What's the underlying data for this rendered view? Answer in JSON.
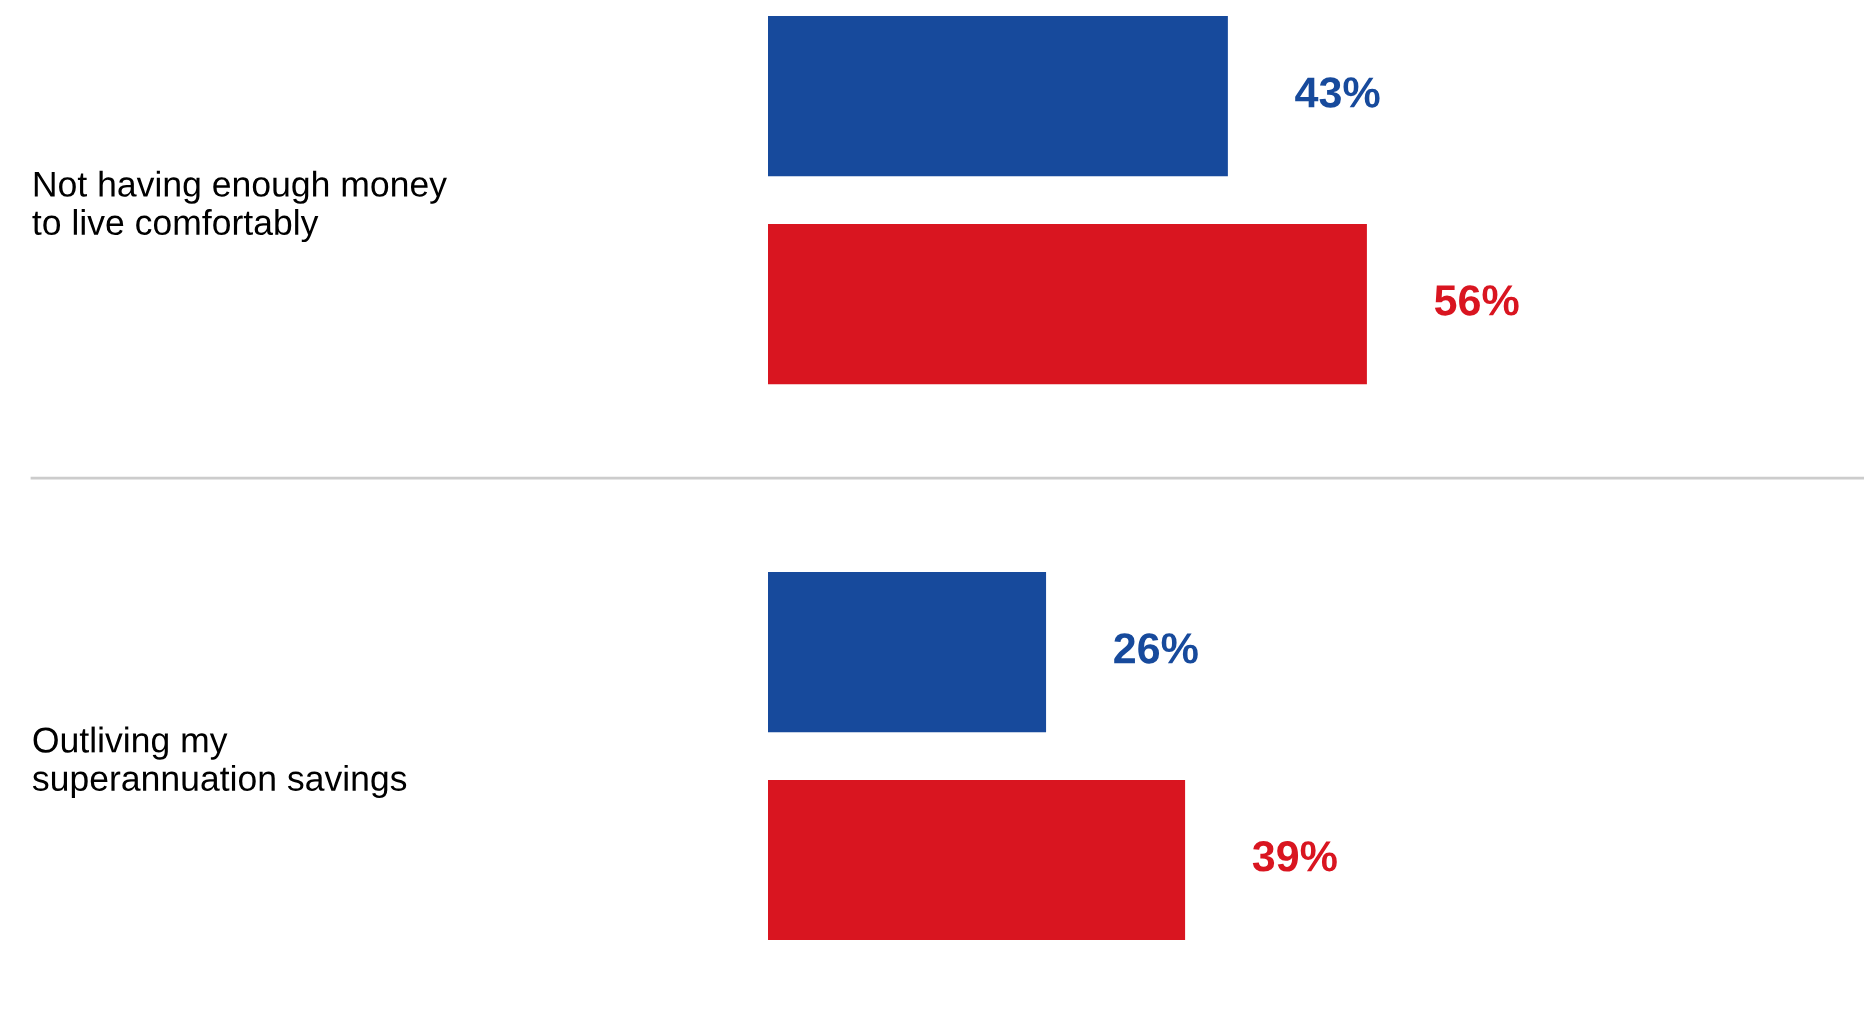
{
  "chart_data": {
    "type": "bar",
    "orientation": "horizontal",
    "categories": [
      "Not having enough money\nto live comfortably",
      "Outliving my\nsuperannuation savings"
    ],
    "series": [
      {
        "color": "#174a9c",
        "values": [
          43,
          26
        ],
        "value_labels": [
          "43%",
          "26%"
        ]
      },
      {
        "color": "#d91520",
        "values": [
          56,
          39
        ],
        "value_labels": [
          "56%",
          "39%"
        ]
      }
    ],
    "grid": false,
    "legend": false,
    "tick_labels": "y"
  }
}
